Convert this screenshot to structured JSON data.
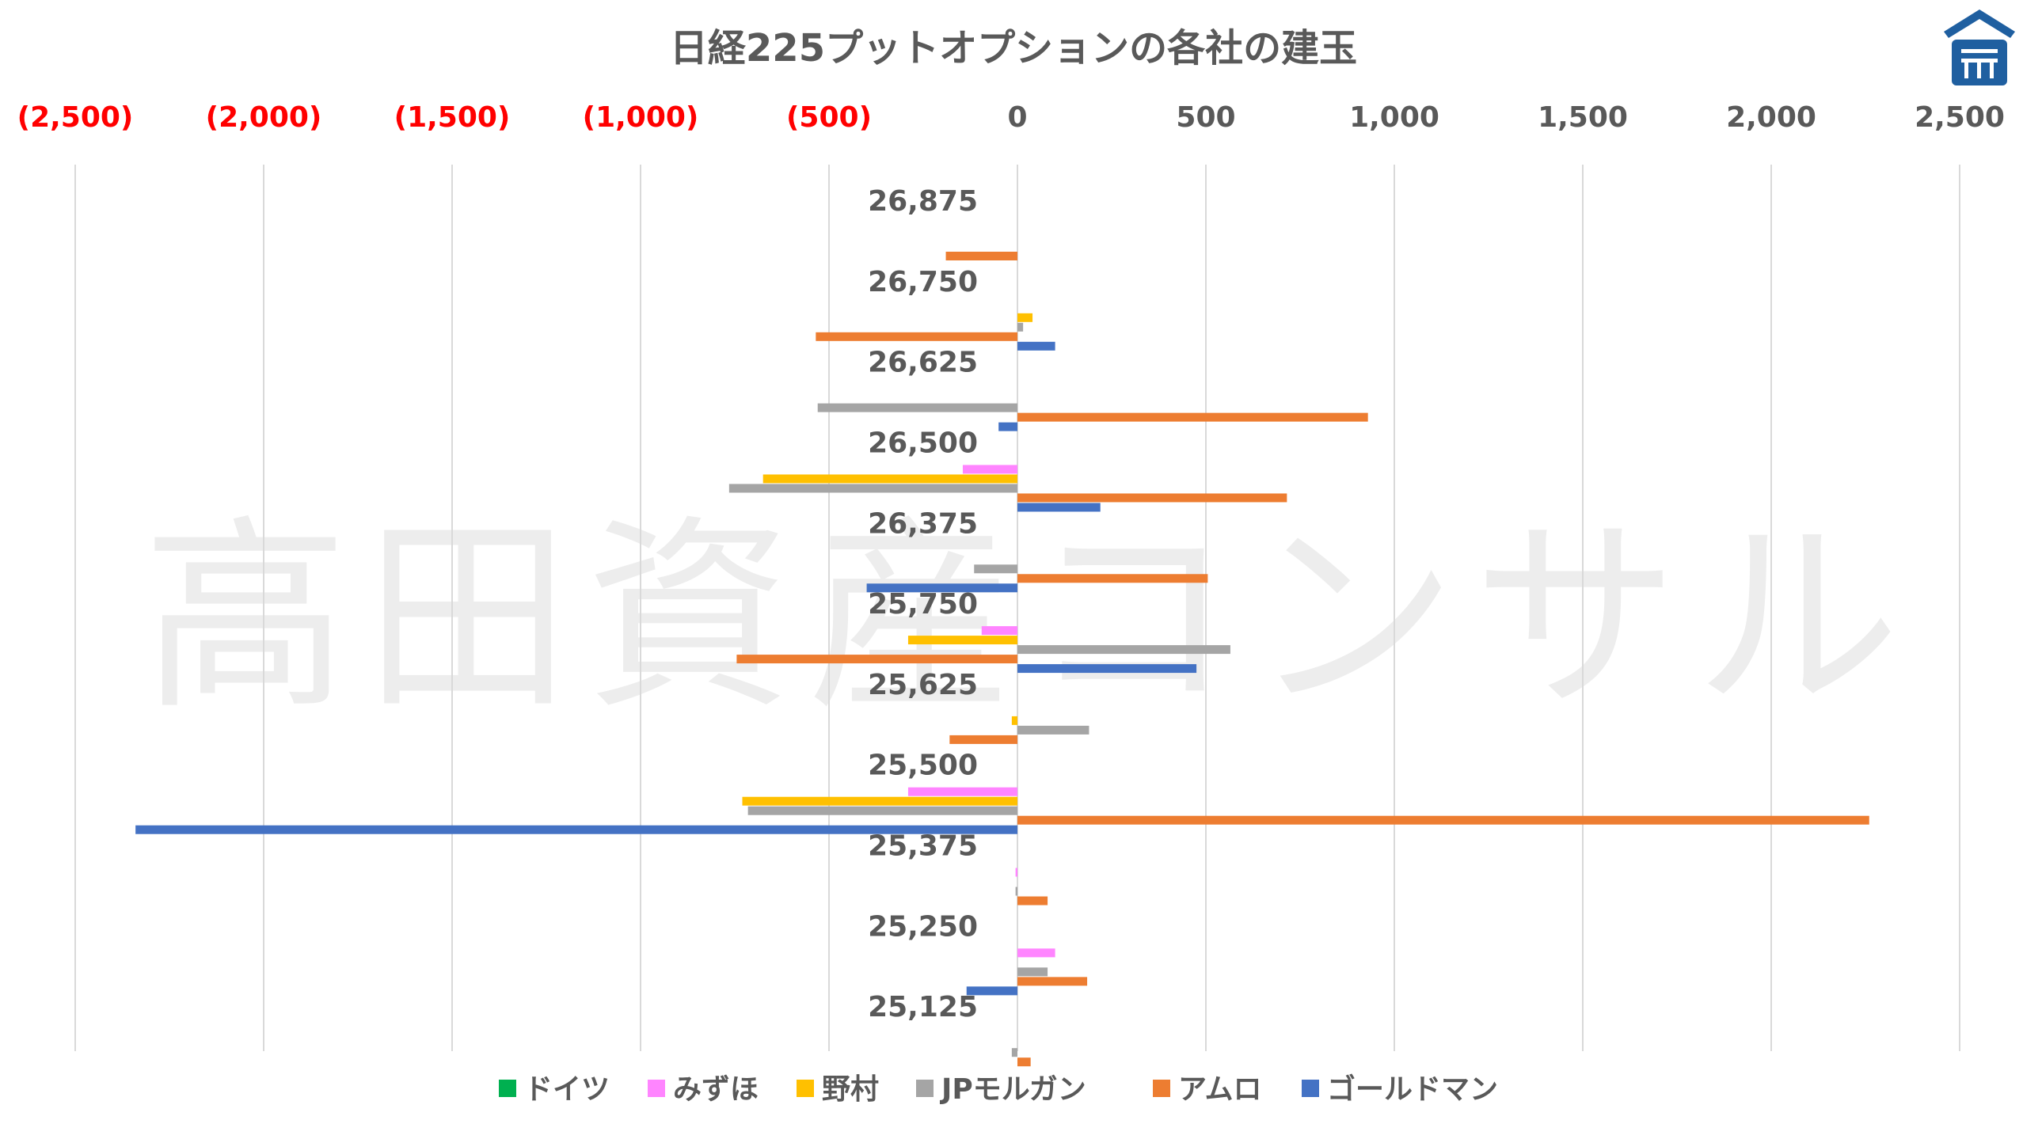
{
  "chart_data": {
    "type": "bar",
    "orientation": "horizontal",
    "title": "日経225プットオプションの各社の建玉",
    "watermark": "高田資産コンサル",
    "xlim": [
      -2500,
      2500
    ],
    "x_ticks": [
      {
        "value": -2500,
        "label": "(2,500)"
      },
      {
        "value": -2000,
        "label": "(2,000)"
      },
      {
        "value": -1500,
        "label": "(1,500)"
      },
      {
        "value": -1000,
        "label": "(1,000)"
      },
      {
        "value": -500,
        "label": "(500)"
      },
      {
        "value": 0,
        "label": "0"
      },
      {
        "value": 500,
        "label": "500"
      },
      {
        "value": 1000,
        "label": "1,000"
      },
      {
        "value": 1500,
        "label": "1,500"
      },
      {
        "value": 2000,
        "label": "2,000"
      },
      {
        "value": 2500,
        "label": "2,500"
      }
    ],
    "negative_tick_color": "#ff0000",
    "positive_tick_color": "#595959",
    "grid": true,
    "legend_position": "bottom",
    "categories": [
      "26,875",
      "26,750",
      "26,625",
      "26,500",
      "26,375",
      "25,750",
      "25,625",
      "25,500",
      "25,375",
      "25,250",
      "25,125"
    ],
    "series": [
      {
        "name": "ドイツ",
        "color": "#00b050",
        "values": [
          0,
          0,
          0,
          0,
          0,
          0,
          0,
          0,
          0,
          0,
          0
        ]
      },
      {
        "name": "みずほ",
        "color": "#ff85ff",
        "values": [
          0,
          0,
          0,
          -145,
          0,
          -95,
          0,
          -290,
          -5,
          100,
          0
        ]
      },
      {
        "name": "野村",
        "color": "#ffc000",
        "values": [
          0,
          40,
          0,
          -675,
          0,
          -290,
          -15,
          -730,
          0,
          0,
          0
        ]
      },
      {
        "name": "JPモルガン",
        "color": "#a5a5a5",
        "values": [
          0,
          15,
          -530,
          -765,
          -115,
          565,
          190,
          -715,
          -5,
          80,
          -15
        ]
      },
      {
        "name": "アムロ",
        "color": "#ed7d31",
        "values": [
          -190,
          -535,
          930,
          715,
          505,
          -745,
          -180,
          2260,
          80,
          185,
          35
        ]
      },
      {
        "name": "ゴールドマン",
        "color": "#4472c4",
        "values": [
          0,
          100,
          -50,
          220,
          -400,
          475,
          0,
          -2340,
          0,
          -135,
          0
        ]
      }
    ]
  }
}
